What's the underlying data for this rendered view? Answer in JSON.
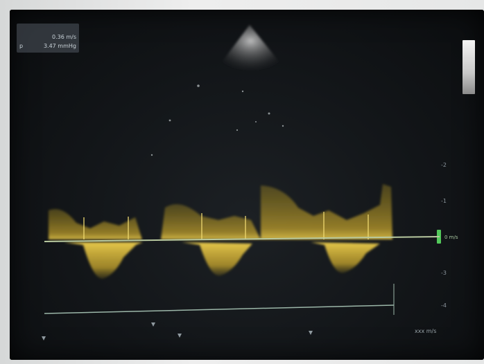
{
  "readout": {
    "rows": [
      {
        "key": "",
        "value": ""
      },
      {
        "key": "",
        "value": "0.36 m/s"
      },
      {
        "key": "p",
        "value": "3.47 mmHg"
      }
    ]
  },
  "scale": {
    "labels": [
      "-2",
      "-1",
      "-3",
      "-4"
    ]
  },
  "baseline": {
    "label": "0 m/s"
  },
  "footer": {
    "text": "xxx m/s"
  },
  "colors": {
    "doppler_yellow": "#e6c238",
    "doppler_dark_yellow": "#8f7a1e",
    "baseline_green": "#53c95b",
    "cursor_line": "#9cb7a9"
  }
}
